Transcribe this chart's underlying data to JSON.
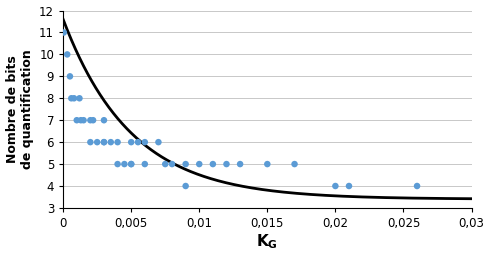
{
  "scatter_x": [
    5e-05,
    0.0003,
    0.0005,
    0.0006,
    0.0008,
    0.001,
    0.0012,
    0.0013,
    0.0015,
    0.002,
    0.002,
    0.0022,
    0.0025,
    0.003,
    0.003,
    0.003,
    0.0035,
    0.004,
    0.004,
    0.0045,
    0.005,
    0.005,
    0.005,
    0.0055,
    0.006,
    0.006,
    0.007,
    0.0075,
    0.008,
    0.009,
    0.009,
    0.01,
    0.011,
    0.012,
    0.013,
    0.015,
    0.017,
    0.02,
    0.021,
    0.026
  ],
  "scatter_y": [
    11,
    10,
    9,
    8,
    8,
    7,
    8,
    7,
    7,
    7,
    6,
    7,
    6,
    6,
    6,
    7,
    6,
    5,
    6,
    5,
    5,
    6,
    5,
    6,
    6,
    5,
    6,
    5,
    5,
    4,
    5,
    5,
    5,
    5,
    5,
    5,
    5,
    4,
    4,
    4
  ],
  "scatter_color": "#5b9bd5",
  "curve_color": "#000000",
  "curve_a": 8.2,
  "curve_b": 0.005,
  "curve_c": 3.4,
  "xlim": [
    0,
    0.03
  ],
  "ylim": [
    3,
    12
  ],
  "yticks": [
    3,
    4,
    5,
    6,
    7,
    8,
    9,
    10,
    11,
    12
  ],
  "xticks": [
    0,
    0.005,
    0.01,
    0.015,
    0.02,
    0.025,
    0.03
  ],
  "xtick_labels": [
    "0",
    "0,005",
    "0,01",
    "0,015",
    "0,02",
    "0,025",
    "0,03"
  ],
  "xlabel": "K$_{G}$",
  "ylabel_line1": "Nombre de bits",
  "ylabel_line2": "de quantification",
  "bg_color": "#ffffff",
  "grid_color": "#c8c8c8"
}
